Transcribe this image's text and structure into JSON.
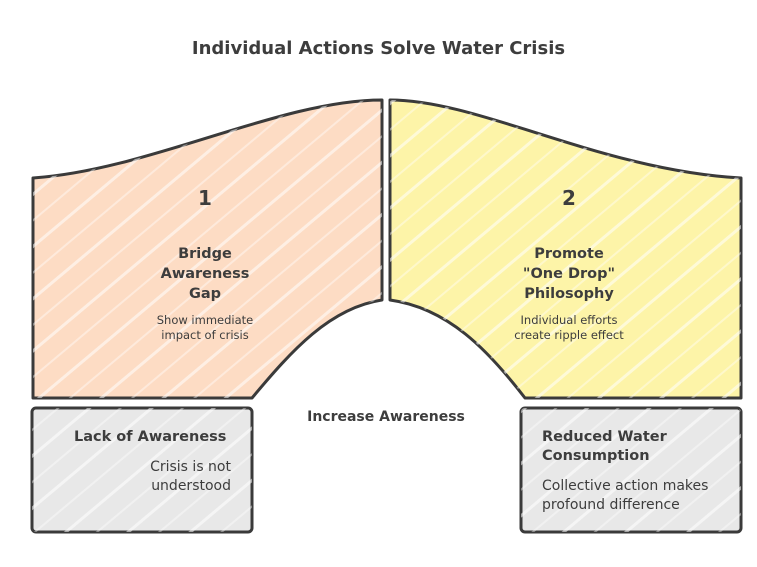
{
  "title": "Individual Actions Solve Water Crisis",
  "center_label": "Increase Awareness",
  "steps": [
    {
      "number": "1",
      "heading_lines": [
        "Bridge",
        "Awareness",
        "Gap"
      ],
      "description_lines": [
        "Show immediate",
        "impact of crisis"
      ],
      "color": "#fddcc4"
    },
    {
      "number": "2",
      "heading_lines": [
        "Promote",
        "\"One Drop\"",
        "Philosophy"
      ],
      "description_lines": [
        "Individual efforts",
        "create ripple effect"
      ],
      "color": "#fdf4a8"
    }
  ],
  "boxes": {
    "left": {
      "heading": "Lack of Awareness",
      "description_lines": [
        "Crisis is not",
        "understood"
      ]
    },
    "right": {
      "heading_lines": [
        "Reduced Water",
        "Consumption"
      ],
      "description_lines": [
        "Collective action makes",
        "profound difference"
      ]
    },
    "color": "#e8e8e8"
  },
  "stroke_color": "#3a3a3a"
}
